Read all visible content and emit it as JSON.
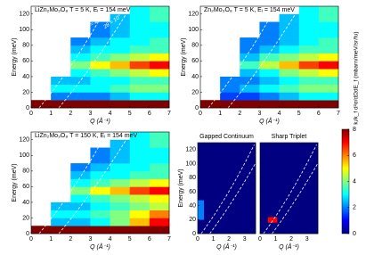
{
  "chart_data": [
    {
      "type": "heatmap",
      "title": "LiZn₂Mo₃O₈  T = 5 K,  Eᵢ = 154 meV",
      "xlabel": "Q (Å⁻¹)",
      "ylabel": "Energy (meV)",
      "xlim": [
        0,
        7
      ],
      "xticks": [
        0,
        1,
        2,
        3,
        4,
        5,
        6,
        7
      ],
      "ylim": [
        0,
        130
      ],
      "yticks": [
        0,
        20,
        40,
        60,
        80,
        100,
        120
      ],
      "annotations": [
        "2θ = 2.5°",
        "2θ = 10°"
      ],
      "x_edges": [
        0,
        1,
        2,
        3,
        4,
        5,
        6,
        7
      ],
      "y_edges": [
        0,
        10,
        20,
        30,
        40,
        50,
        60,
        70,
        80,
        90,
        100,
        110,
        120,
        130
      ],
      "z": [
        [
          8,
          8,
          8,
          8,
          8,
          8,
          8
        ],
        [
          null,
          2,
          2,
          2,
          2.5,
          3,
          3
        ],
        [
          null,
          3,
          3,
          3,
          3.5,
          4,
          4
        ],
        [
          null,
          2.5,
          2.5,
          3,
          3,
          3.5,
          3.5
        ],
        [
          null,
          null,
          3,
          3.5,
          4,
          4.5,
          5
        ],
        [
          null,
          null,
          4,
          5,
          5.5,
          6.5,
          7
        ],
        [
          null,
          null,
          3,
          3.5,
          4,
          4.5,
          5
        ],
        [
          null,
          null,
          2.5,
          3,
          3,
          3.5,
          3.5
        ],
        [
          null,
          null,
          2,
          2.5,
          3,
          3,
          3.5
        ],
        [
          null,
          null,
          null,
          2,
          2.5,
          3,
          3
        ],
        [
          null,
          null,
          null,
          2,
          2.5,
          3,
          3
        ],
        [
          null,
          null,
          null,
          null,
          2.5,
          3,
          3.5
        ],
        [
          null,
          null,
          null,
          null,
          null,
          3,
          3.5
        ]
      ]
    },
    {
      "type": "heatmap",
      "title": "Zn₂Mo₃O₈  T = 5 K,  Eᵢ = 154 meV",
      "xlabel": "Q (Å⁻¹)",
      "ylabel": "Energy (meV)",
      "xlim": [
        0,
        7
      ],
      "xticks": [
        0,
        1,
        2,
        3,
        4,
        5,
        6,
        7
      ],
      "ylim": [
        0,
        130
      ],
      "yticks": [
        0,
        20,
        40,
        60,
        80,
        100,
        120
      ],
      "x_edges": [
        0,
        1,
        2,
        3,
        4,
        5,
        6,
        7
      ],
      "y_edges": [
        0,
        10,
        20,
        30,
        40,
        50,
        60,
        70,
        80,
        90,
        100,
        110,
        120,
        130
      ],
      "z": [
        [
          8,
          8,
          8,
          8,
          8,
          8,
          8
        ],
        [
          null,
          1.5,
          1.5,
          2,
          2.5,
          3,
          3
        ],
        [
          null,
          2,
          2.5,
          3,
          3.5,
          4,
          4
        ],
        [
          null,
          2,
          2,
          2.5,
          3,
          3.5,
          3.5
        ],
        [
          null,
          null,
          2.5,
          3,
          4,
          4.5,
          5
        ],
        [
          null,
          null,
          3.5,
          4.5,
          5.5,
          6.5,
          7
        ],
        [
          null,
          null,
          2.5,
          3.5,
          4,
          4.5,
          5
        ],
        [
          null,
          null,
          2,
          2.5,
          3,
          3.5,
          3.5
        ],
        [
          null,
          null,
          2,
          2,
          2.5,
          3,
          3.5
        ],
        [
          null,
          null,
          null,
          2,
          2.5,
          3,
          3
        ],
        [
          null,
          null,
          null,
          2,
          2.5,
          3,
          3
        ],
        [
          null,
          null,
          null,
          null,
          2.5,
          3,
          3.5
        ],
        [
          null,
          null,
          null,
          null,
          null,
          3,
          3.5
        ]
      ]
    },
    {
      "type": "heatmap",
      "title": "LiZn₂Mo₃O₈  T = 150 K,  Eᵢ = 154 meV",
      "xlabel": "Q (Å⁻¹)",
      "ylabel": "Energy (meV)",
      "xlim": [
        0,
        7
      ],
      "xticks": [
        0,
        1,
        2,
        3,
        4,
        5,
        6,
        7
      ],
      "ylim": [
        0,
        130
      ],
      "yticks": [
        0,
        20,
        40,
        60,
        80,
        100,
        120
      ],
      "x_edges": [
        0,
        1,
        2,
        3,
        4,
        5,
        6,
        7
      ],
      "y_edges": [
        0,
        10,
        20,
        30,
        40,
        50,
        60,
        70,
        80,
        90,
        100,
        110,
        120,
        130
      ],
      "z": [
        [
          8,
          8,
          8,
          8,
          8,
          8,
          8
        ],
        [
          null,
          2.5,
          2.5,
          3,
          4,
          5.5,
          7
        ],
        [
          null,
          3,
          3,
          3.5,
          4,
          5,
          6
        ],
        [
          null,
          2.5,
          2.5,
          3,
          3.5,
          4,
          4.5
        ],
        [
          null,
          null,
          3,
          3.5,
          4,
          4.5,
          5
        ],
        [
          null,
          null,
          4,
          5,
          5.5,
          6.5,
          7
        ],
        [
          null,
          null,
          3,
          3.5,
          4,
          4.5,
          5
        ],
        [
          null,
          null,
          2.5,
          3,
          3,
          3.5,
          3.5
        ],
        [
          null,
          null,
          2,
          2.5,
          3,
          3,
          3.5
        ],
        [
          null,
          null,
          null,
          2,
          2.5,
          3,
          3
        ],
        [
          null,
          null,
          null,
          2,
          2.5,
          3,
          3
        ],
        [
          null,
          null,
          null,
          null,
          2.5,
          3,
          3.5
        ],
        [
          null,
          null,
          null,
          null,
          null,
          3,
          3.5
        ]
      ]
    },
    {
      "type": "heatmap",
      "title": "Gapped Continuum",
      "xlabel": "Q (Å⁻¹)",
      "ylabel": "Energy (meV)",
      "xlim": [
        0,
        3.7
      ],
      "xticks": [
        0,
        1,
        2,
        3
      ],
      "ylim": [
        0,
        130
      ],
      "yticks": [
        0,
        20,
        40,
        60,
        80,
        100,
        120
      ],
      "x_edges": [
        0,
        0.4,
        3.7
      ],
      "y_edges": [
        0,
        20,
        48,
        130
      ],
      "z": [
        [
          0,
          0
        ],
        [
          2,
          0
        ],
        [
          0,
          0
        ]
      ]
    },
    {
      "type": "heatmap",
      "title": "Sharp Triplet",
      "xlabel": "Q (Å⁻¹)",
      "xlim": [
        0,
        3.7
      ],
      "xticks": [
        0,
        1,
        2,
        3
      ],
      "ylim": [
        0,
        130
      ],
      "yticks": [
        0,
        20,
        40,
        60,
        80,
        100,
        120
      ],
      "x_edges": [
        0,
        0.5,
        1.1,
        3.7
      ],
      "y_edges": [
        0,
        16,
        24,
        130
      ],
      "z": [
        [
          0,
          0,
          0
        ],
        [
          0,
          7,
          0
        ],
        [
          0,
          0,
          0
        ]
      ]
    }
  ],
  "colorbar": {
    "label": "kᵢ/k_f d²σ/dΩdE_f (mbarn/meV/sr/fu)",
    "lim": [
      0,
      8
    ],
    "ticks": [
      0,
      2,
      4,
      6,
      8
    ]
  }
}
